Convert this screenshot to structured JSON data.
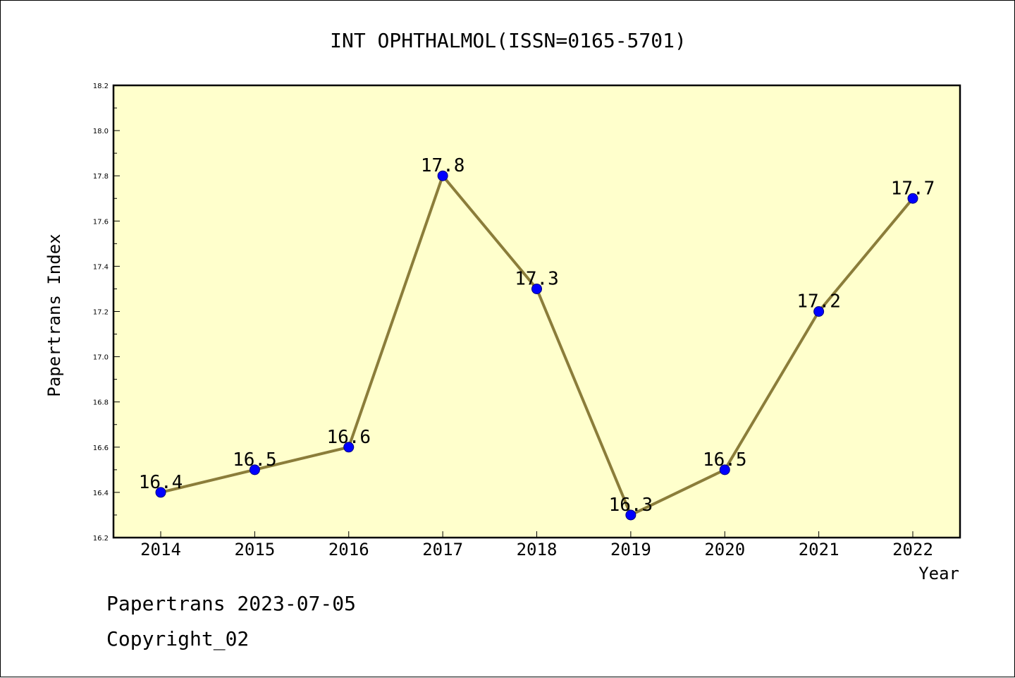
{
  "colors": {
    "plot_background": "#ffffcc",
    "line": "#8b7d3a",
    "marker_fill": "#0000ff",
    "marker_stroke": "#000080"
  },
  "footer": {
    "line1": "Papertrans 2023-07-05",
    "line2": "Copyright_02"
  },
  "chart_data": {
    "type": "line",
    "title": "INT OPHTHALMOL(ISSN=0165-5701)",
    "xlabel": "Year",
    "ylabel": "Papertrans Index",
    "categories": [
      "2014",
      "2015",
      "2016",
      "2017",
      "2018",
      "2019",
      "2020",
      "2021",
      "2022"
    ],
    "series": [
      {
        "values": [
          16.4,
          16.5,
          16.6,
          17.8,
          17.3,
          16.3,
          16.5,
          17.2,
          17.7
        ]
      }
    ],
    "data_labels": [
      "16.4",
      "16.5",
      "16.6",
      "17.8",
      "17.3",
      "16.3",
      "16.5",
      "17.2",
      "17.7"
    ],
    "ylim": [
      16.2,
      18.2
    ],
    "yticks": [
      "16.2",
      "16.4",
      "16.6",
      "16.8",
      "17.0",
      "17.2",
      "17.4",
      "17.6",
      "17.8",
      "18.0",
      "18.2"
    ],
    "grid": false,
    "legend": "none"
  }
}
